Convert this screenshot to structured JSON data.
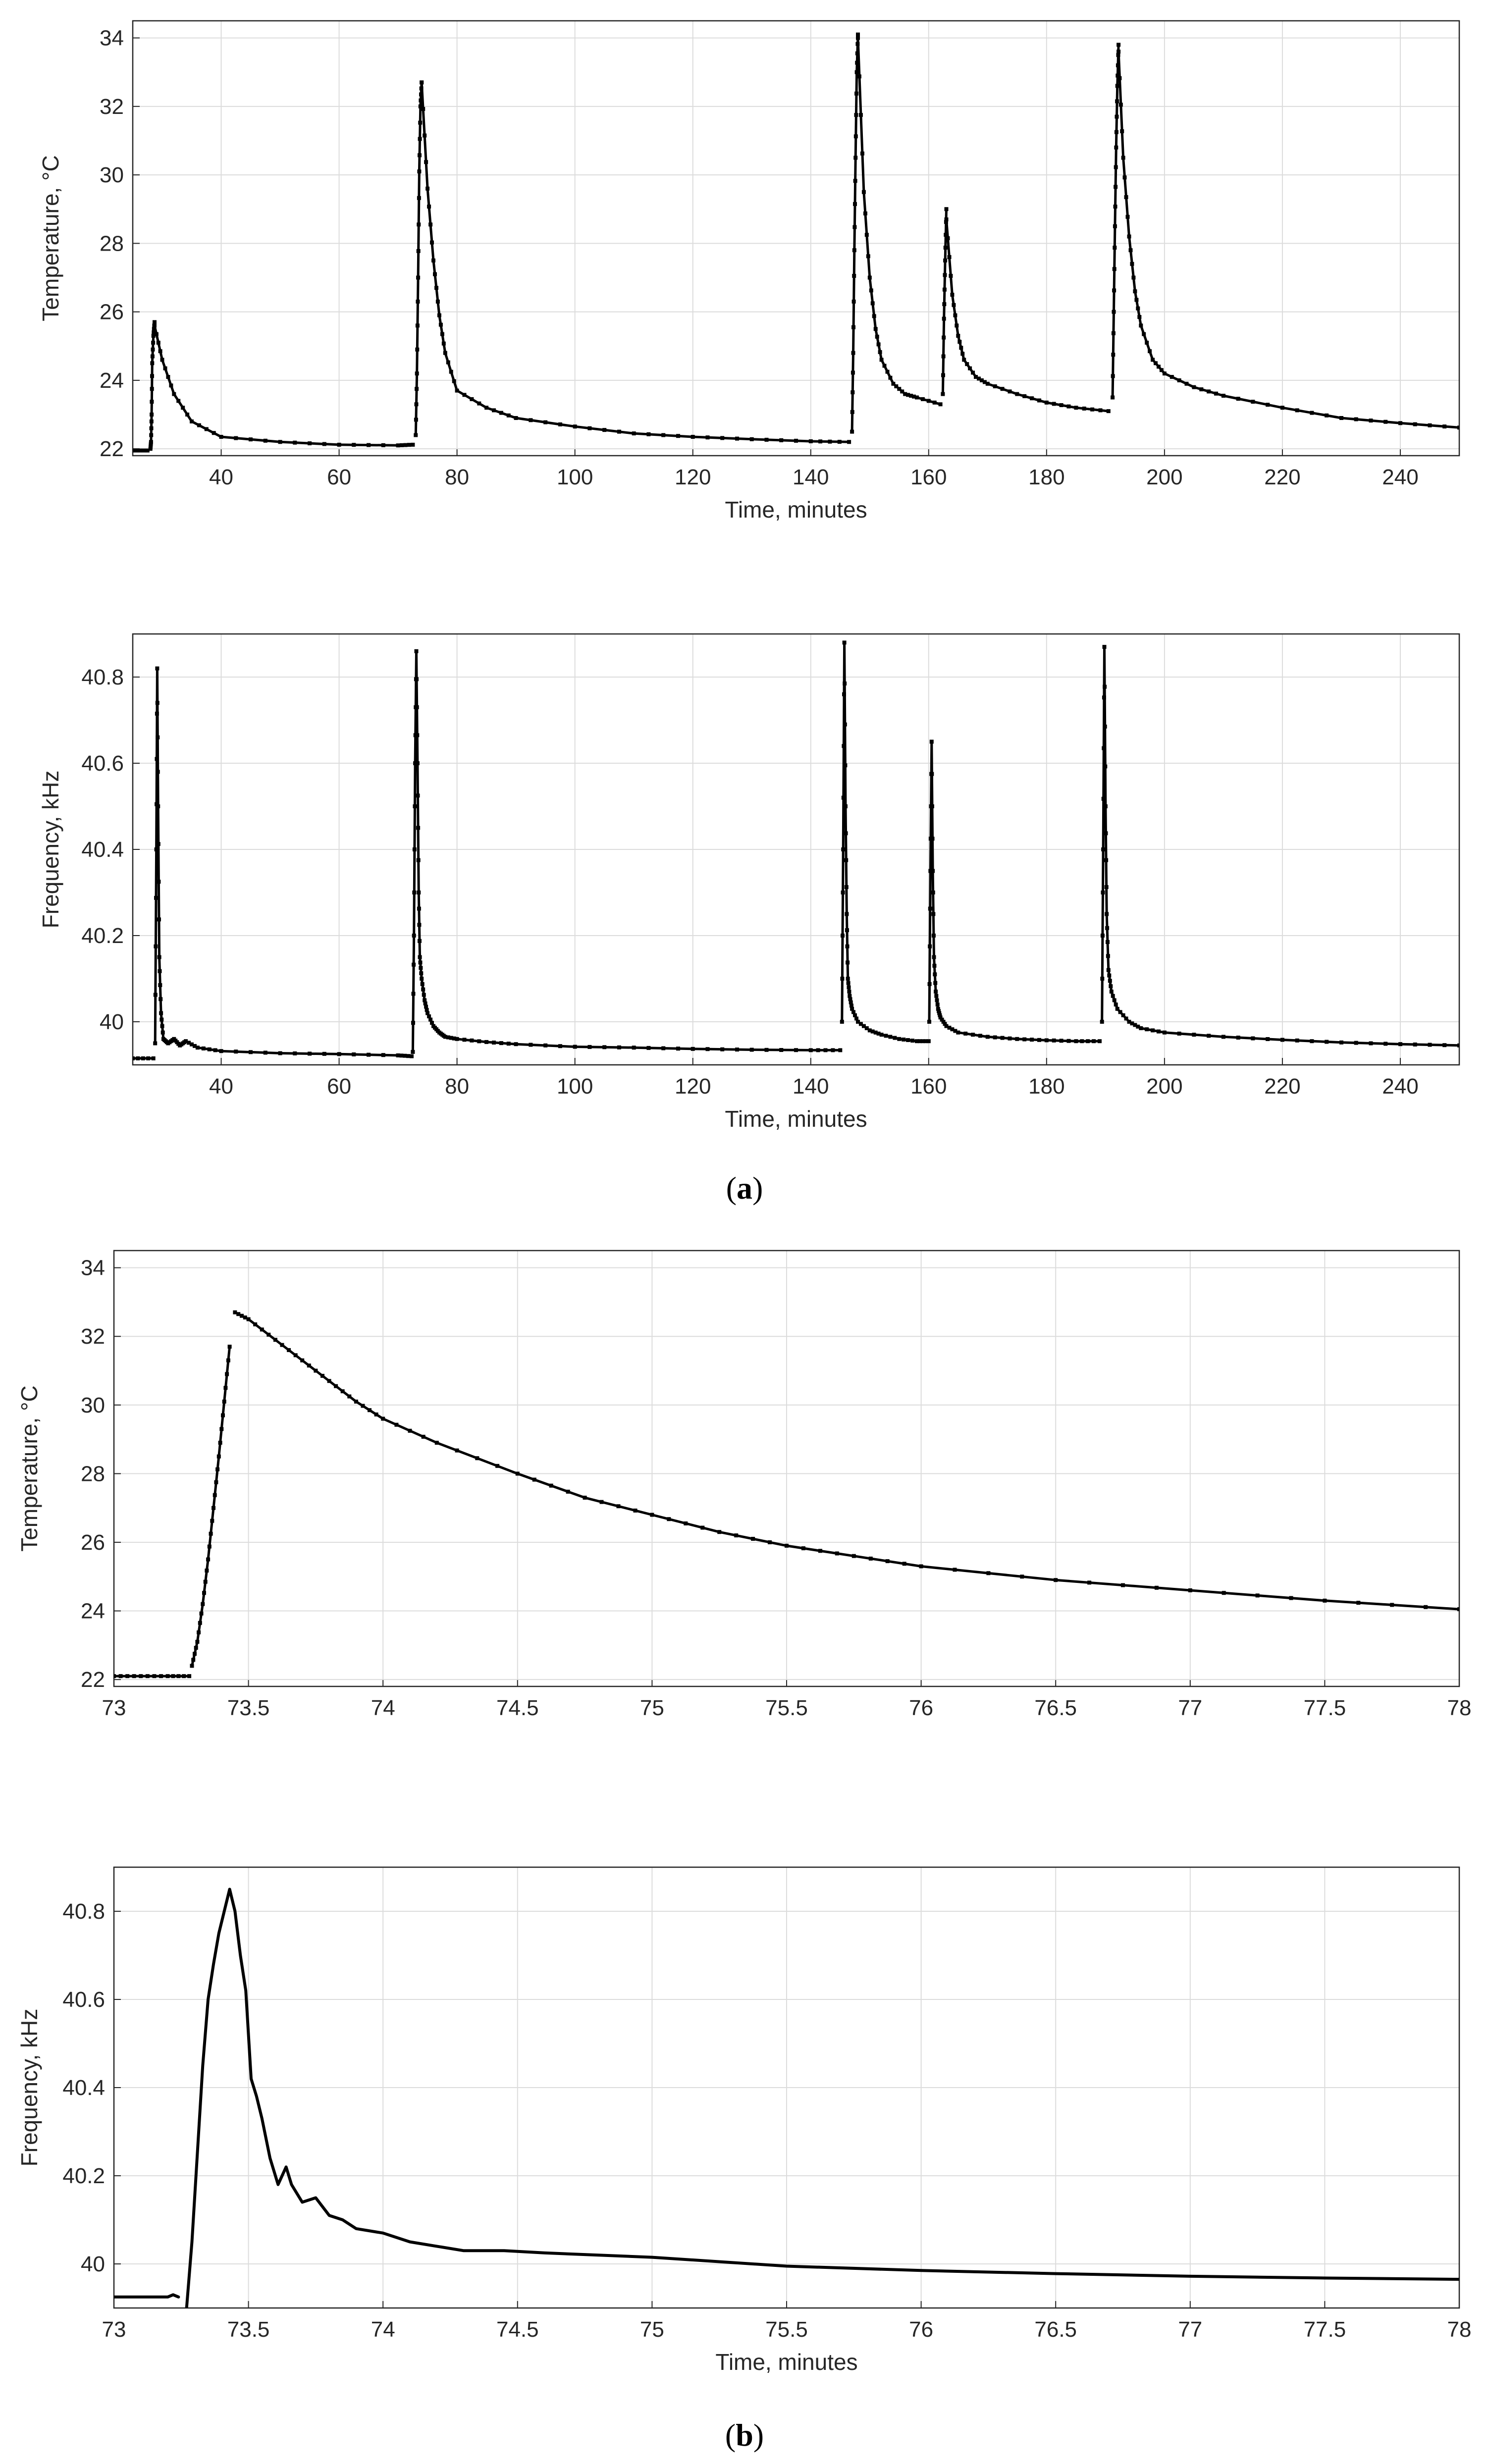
{
  "panel_labels": {
    "a": "a",
    "b": "b"
  },
  "colors": {
    "marker": "#000000",
    "grid": "#dcdcdc",
    "axis": "#262626",
    "background": "#ffffff"
  },
  "chart_data": [
    {
      "id": "a-temperature",
      "type": "scatter",
      "xlabel": "Time, minutes",
      "ylabel": "Temperature, °C",
      "xlim": [
        25,
        250
      ],
      "ylim": [
        21.8,
        34.5
      ],
      "xticks": [
        40,
        60,
        80,
        100,
        120,
        140,
        160,
        180,
        200,
        220,
        240
      ],
      "yticks": [
        22,
        24,
        26,
        28,
        30,
        32,
        34
      ],
      "grid": true,
      "series": [
        {
          "name": "Temperature",
          "segments": [
            {
              "x": [
                25,
                27.5
              ],
              "y": [
                21.95,
                21.95
              ]
            },
            {
              "x": [
                28.0,
                28.1,
                28.2,
                28.3,
                28.5,
                28.7
              ],
              "y": [
                22.0,
                22.2,
                23.0,
                24.5,
                25.3,
                25.7
              ]
            },
            {
              "x": [
                28.7,
                30,
                32,
                35,
                40,
                50,
                60,
                70,
                72.5
              ],
              "y": [
                25.6,
                24.6,
                23.6,
                22.8,
                22.35,
                22.2,
                22.12,
                22.1,
                22.12
              ]
            },
            {
              "x": [
                73.0,
                73.2,
                73.4,
                73.6,
                73.8,
                74.0
              ],
              "y": [
                22.4,
                24.2,
                27.0,
                30.1,
                32.0,
                32.7
              ]
            },
            {
              "x": [
                74.0,
                75,
                76,
                77,
                78,
                80,
                85,
                90,
                100,
                110,
                120,
                130,
                140,
                146.5
              ],
              "y": [
                32.7,
                29.6,
                27.5,
                25.9,
                24.8,
                23.7,
                23.2,
                22.9,
                22.65,
                22.45,
                22.35,
                22.28,
                22.22,
                22.2
              ]
            },
            {
              "x": [
                147.0,
                147.2,
                147.4,
                147.6,
                147.8,
                148.0
              ],
              "y": [
                22.5,
                24.8,
                27.8,
                30.5,
                33.0,
                34.1
              ]
            },
            {
              "x": [
                148.0,
                149,
                150,
                151,
                152,
                154,
                156,
                158,
                162
              ],
              "y": [
                34.0,
                29.5,
                27.0,
                25.5,
                24.6,
                23.9,
                23.6,
                23.5,
                23.3
              ]
            },
            {
              "x": [
                162.4,
                162.6,
                162.8,
                163.0
              ],
              "y": [
                23.6,
                25.8,
                27.5,
                29.0
              ]
            },
            {
              "x": [
                163.0,
                164,
                165,
                166,
                168,
                170,
                175,
                180,
                185,
                190.5
              ],
              "y": [
                28.7,
                26.5,
                25.3,
                24.6,
                24.1,
                23.9,
                23.6,
                23.35,
                23.2,
                23.1
              ]
            },
            {
              "x": [
                191.2,
                191.4,
                191.6,
                191.8,
                192.0,
                192.2
              ],
              "y": [
                23.5,
                26.0,
                28.5,
                30.8,
                32.6,
                33.8
              ]
            },
            {
              "x": [
                192.2,
                193,
                194,
                195,
                196,
                198,
                200,
                205,
                210,
                220,
                230,
                240,
                250
              ],
              "y": [
                33.6,
                30.5,
                28.2,
                26.6,
                25.6,
                24.6,
                24.2,
                23.8,
                23.55,
                23.2,
                22.9,
                22.75,
                22.62
              ]
            }
          ]
        }
      ]
    },
    {
      "id": "a-frequency",
      "type": "scatter",
      "xlabel": "Time, minutes",
      "ylabel": "Frequency, kHz",
      "xlim": [
        25,
        250
      ],
      "ylim": [
        39.9,
        40.9
      ],
      "xticks": [
        40,
        60,
        80,
        100,
        120,
        140,
        160,
        180,
        200,
        220,
        240
      ],
      "yticks": [
        40,
        40.2,
        40.4,
        40.6,
        40.8
      ],
      "ytick_labels": [
        "40",
        "40.2",
        "40.4",
        "40.6",
        "40.8"
      ],
      "grid": true,
      "series": [
        {
          "name": "Frequency",
          "segments": [
            {
              "x": [
                25,
                28.5
              ],
              "y": [
                39.915,
                39.915
              ]
            },
            {
              "x": [
                28.8,
                29.0,
                29.15,
                29.3,
                29.5,
                29.8,
                30.2,
                31,
                32,
                33,
                34,
                36,
                40,
                50,
                60,
                70,
                72.3
              ],
              "y": [
                39.95,
                40.4,
                40.82,
                40.5,
                40.15,
                40.02,
                39.96,
                39.95,
                39.96,
                39.945,
                39.955,
                39.94,
                39.932,
                39.927,
                39.925,
                39.922,
                39.92
              ]
            },
            {
              "x": [
                72.5,
                72.7,
                72.9,
                73.1,
                73.3,
                73.5,
                73.7,
                74.0,
                74.5,
                75,
                76,
                77,
                78,
                80,
                85,
                90,
                100,
                110,
                120,
                130,
                140,
                145
              ],
              "y": [
                39.93,
                40.2,
                40.6,
                40.86,
                40.6,
                40.3,
                40.15,
                40.1,
                40.05,
                40.02,
                39.99,
                39.975,
                39.965,
                39.96,
                39.953,
                39.948,
                39.942,
                39.94,
                39.937,
                39.935,
                39.934,
                39.934
              ]
            },
            {
              "x": [
                145.3,
                145.5,
                145.7,
                145.9,
                146.1,
                146.3,
                146.6,
                147,
                148,
                150,
                152,
                155,
                158,
                160
              ],
              "y": [
                40.0,
                40.4,
                40.88,
                40.5,
                40.25,
                40.1,
                40.06,
                40.03,
                40.0,
                39.98,
                39.97,
                39.96,
                39.955,
                39.955
              ]
            },
            {
              "x": [
                160.1,
                160.3,
                160.5,
                160.7,
                160.9,
                161.2,
                161.6,
                162,
                163,
                165,
                170,
                175,
                180,
                185,
                189
              ],
              "y": [
                40.0,
                40.35,
                40.65,
                40.35,
                40.15,
                40.07,
                40.03,
                40.01,
                39.99,
                39.975,
                39.965,
                39.96,
                39.957,
                39.955,
                39.955
              ]
            },
            {
              "x": [
                189.4,
                189.6,
                189.8,
                190.0,
                190.2,
                190.5,
                191,
                192,
                194,
                196,
                200,
                210,
                220,
                230,
                240,
                250
              ],
              "y": [
                40.0,
                40.4,
                40.87,
                40.5,
                40.25,
                40.12,
                40.07,
                40.03,
                40.0,
                39.985,
                39.975,
                39.965,
                39.958,
                39.952,
                39.948,
                39.945
              ]
            }
          ]
        }
      ]
    },
    {
      "id": "b-temperature",
      "type": "scatter",
      "xlabel": "",
      "ylabel": "Temperature, °C",
      "xlim": [
        73,
        78
      ],
      "ylim": [
        21.8,
        34.5
      ],
      "xticks": [
        73,
        73.5,
        74,
        74.5,
        75,
        75.5,
        76,
        76.5,
        77,
        77.5,
        78
      ],
      "yticks": [
        22,
        24,
        26,
        28,
        30,
        32,
        34
      ],
      "grid": true,
      "series": [
        {
          "name": "Temperature",
          "segments": [
            {
              "x": [
                73.0,
                73.1,
                73.2,
                73.28
              ],
              "y": [
                22.1,
                22.1,
                22.1,
                22.1
              ]
            },
            {
              "x": [
                73.29,
                73.31,
                73.33,
                73.35,
                73.37,
                73.39,
                73.41,
                73.43
              ],
              "y": [
                22.4,
                23.1,
                24.2,
                25.5,
                27.0,
                28.5,
                30.1,
                31.7
              ]
            },
            {
              "x": [
                73.45,
                73.5,
                73.6,
                73.7,
                73.8,
                73.9,
                74.0,
                74.2,
                74.5,
                74.75,
                75.0,
                75.25,
                75.5,
                75.75,
                76.0,
                76.5,
                77.0,
                77.5,
                78.0
              ],
              "y": [
                32.7,
                32.5,
                31.9,
                31.3,
                30.7,
                30.1,
                29.6,
                28.9,
                28.0,
                27.3,
                26.8,
                26.3,
                25.9,
                25.6,
                25.3,
                24.9,
                24.6,
                24.3,
                24.05
              ]
            }
          ]
        }
      ]
    },
    {
      "id": "b-frequency",
      "type": "line",
      "xlabel": "Time, minutes",
      "ylabel": "Frequency, kHz",
      "xlim": [
        73,
        78
      ],
      "ylim": [
        39.9,
        40.9
      ],
      "xticks": [
        73,
        73.5,
        74,
        74.5,
        75,
        75.5,
        76,
        76.5,
        77,
        77.5,
        78
      ],
      "yticks": [
        40,
        40.2,
        40.4,
        40.6,
        40.8
      ],
      "ytick_labels": [
        "40",
        "40.2",
        "40.4",
        "40.6",
        "40.8"
      ],
      "grid": true,
      "series": [
        {
          "name": "Frequency",
          "segments": [
            {
              "x": [
                73.0,
                73.1,
                73.2,
                73.22,
                73.24
              ],
              "y": [
                39.925,
                39.925,
                39.925,
                39.93,
                39.925
              ]
            },
            {
              "x": [
                73.27,
                73.29,
                73.31,
                73.33,
                73.35,
                73.37,
                73.39,
                73.41,
                73.43,
                73.45,
                73.47,
                73.49,
                73.51,
                73.53,
                73.55,
                73.58,
                73.61,
                73.64,
                73.66,
                73.7,
                73.75,
                73.8,
                73.85,
                73.9,
                74.0,
                74.1,
                74.2,
                74.3,
                74.45,
                74.6,
                75.0,
                75.5,
                76.0,
                76.5,
                77.0,
                77.5,
                78.0
              ],
              "y": [
                39.9,
                40.05,
                40.25,
                40.45,
                40.6,
                40.68,
                40.75,
                40.8,
                40.85,
                40.8,
                40.7,
                40.62,
                40.42,
                40.38,
                40.33,
                40.24,
                40.18,
                40.22,
                40.18,
                40.14,
                40.15,
                40.11,
                40.1,
                40.08,
                40.07,
                40.05,
                40.04,
                40.03,
                40.03,
                40.025,
                40.015,
                39.995,
                39.985,
                39.978,
                39.972,
                39.968,
                39.965
              ]
            }
          ]
        }
      ]
    }
  ]
}
